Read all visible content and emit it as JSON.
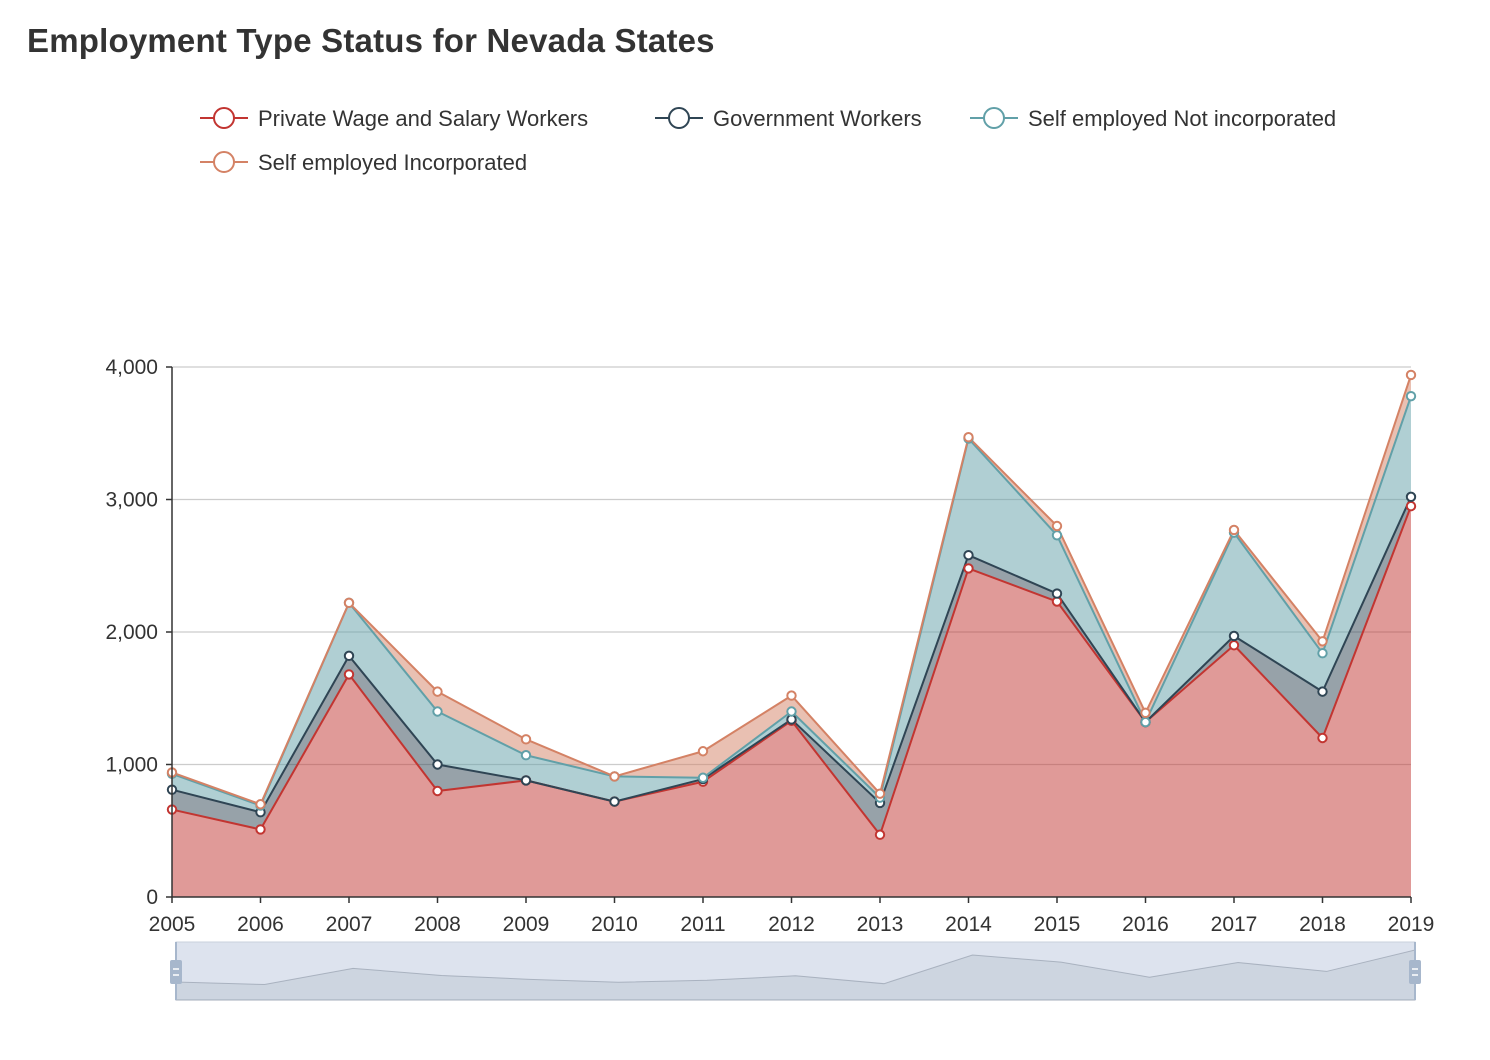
{
  "chart_data": {
    "type": "area",
    "stacked": true,
    "title": "Employment Type Status for Nevada States",
    "categories": [
      "2005",
      "2006",
      "2007",
      "2008",
      "2009",
      "2010",
      "2011",
      "2012",
      "2013",
      "2014",
      "2015",
      "2016",
      "2017",
      "2018",
      "2019"
    ],
    "series": [
      {
        "name": "Private Wage and Salary Workers",
        "color": "#c23531",
        "values": [
          660,
          510,
          1680,
          800,
          880,
          720,
          870,
          1330,
          470,
          2480,
          2230,
          1320,
          1900,
          1200,
          2950
        ]
      },
      {
        "name": "Government Workers",
        "color": "#2f4554",
        "values": [
          150,
          130,
          140,
          200,
          0,
          0,
          20,
          10,
          240,
          100,
          60,
          0,
          70,
          350,
          70
        ]
      },
      {
        "name": "Self employed Not incorporated",
        "color": "#61a0a8",
        "values": [
          120,
          50,
          400,
          400,
          190,
          190,
          10,
          60,
          40,
          880,
          440,
          0,
          780,
          290,
          760
        ]
      },
      {
        "name": "Self employed Incorporated",
        "color": "#d48265",
        "values": [
          10,
          10,
          0,
          150,
          120,
          0,
          200,
          120,
          30,
          10,
          70,
          70,
          20,
          90,
          160
        ]
      }
    ],
    "ylim": [
      0,
      4000
    ],
    "yticks": [
      0,
      1000,
      2000,
      3000,
      4000
    ],
    "ytick_labels": [
      "0",
      "1,000",
      "2,000",
      "3,000",
      "4,000"
    ],
    "grid": true,
    "legend_position": "top",
    "data_zoom_slider": true
  }
}
